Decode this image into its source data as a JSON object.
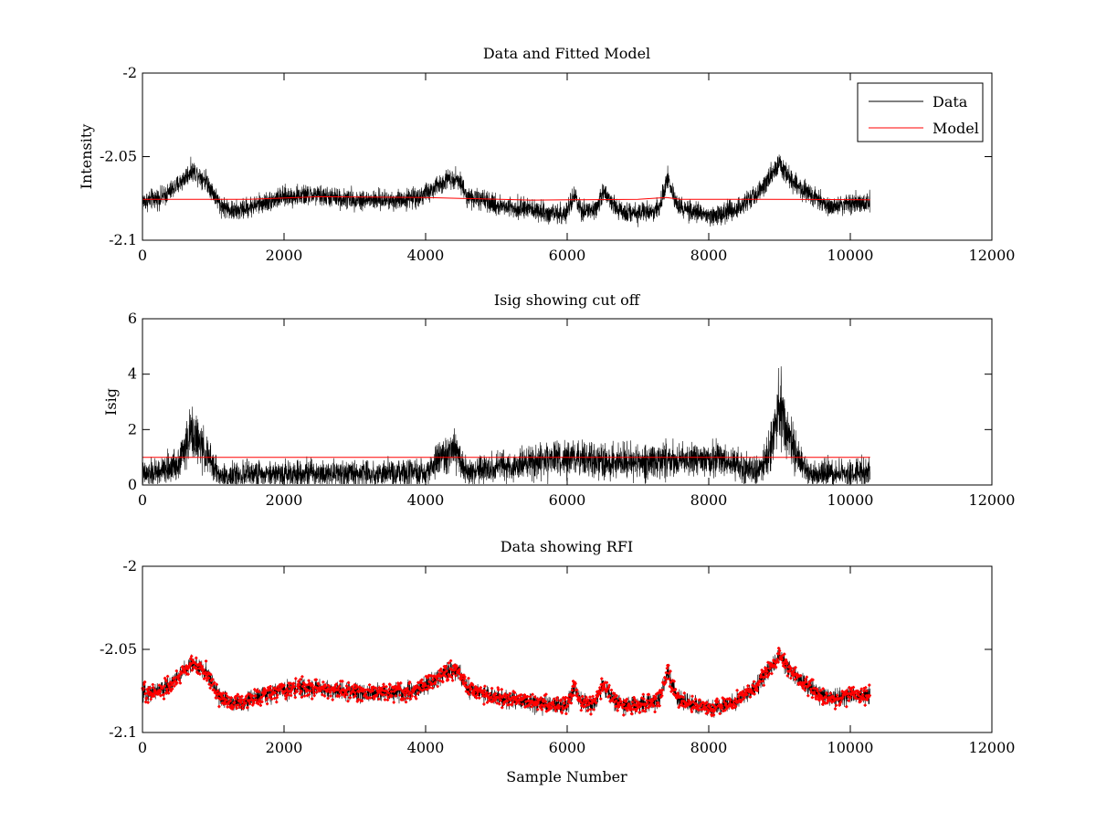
{
  "figure": {
    "background": "#ffffff",
    "axis_color": "#000000"
  },
  "chart_data": [
    {
      "type": "line",
      "title": "Data and Fitted Model",
      "xlabel": "",
      "ylabel": "Intensity",
      "xlim": [
        0,
        12000
      ],
      "ylim": [
        -2.1,
        -2.0
      ],
      "xticks": [
        "0",
        "2000",
        "4000",
        "6000",
        "8000",
        "10000",
        "12000"
      ],
      "yticks": [
        "-2",
        "-2.05",
        "-2.1"
      ],
      "grid": false,
      "legend": {
        "placement": "top-right",
        "entries": [
          "Data",
          "Model"
        ]
      },
      "x_range": [
        0,
        10280
      ],
      "series": [
        {
          "name": "Data",
          "color": "#000000",
          "style": "noisy-line",
          "x": [
            0,
            300,
            500,
            700,
            900,
            1100,
            1300,
            1600,
            2000,
            2400,
            2800,
            3200,
            3600,
            3900,
            4100,
            4300,
            4450,
            4600,
            5000,
            5400,
            5800,
            6000,
            6100,
            6200,
            6400,
            6500,
            6700,
            7000,
            7300,
            7420,
            7550,
            7800,
            8100,
            8400,
            8700,
            8900,
            9000,
            9100,
            9300,
            9500,
            9700,
            10000,
            10280
          ],
          "values": [
            -2.077,
            -2.074,
            -2.067,
            -2.058,
            -2.064,
            -2.079,
            -2.083,
            -2.079,
            -2.074,
            -2.073,
            -2.075,
            -2.076,
            -2.076,
            -2.074,
            -2.07,
            -2.063,
            -2.063,
            -2.074,
            -2.079,
            -2.081,
            -2.084,
            -2.084,
            -2.073,
            -2.083,
            -2.082,
            -2.071,
            -2.082,
            -2.084,
            -2.081,
            -2.063,
            -2.079,
            -2.084,
            -2.085,
            -2.081,
            -2.071,
            -2.06,
            -2.054,
            -2.06,
            -2.069,
            -2.075,
            -2.08,
            -2.078,
            -2.077
          ],
          "noise_amplitude": 0.009
        },
        {
          "name": "Model",
          "color": "#ff0000",
          "style": "line",
          "x": [
            0,
            1500,
            2500,
            4000,
            5500,
            7000,
            7400,
            7600,
            8800,
            10280
          ],
          "values": [
            -2.0755,
            -2.0755,
            -2.074,
            -2.0745,
            -2.076,
            -2.0755,
            -2.0745,
            -2.0755,
            -2.0755,
            -2.0758
          ]
        }
      ]
    },
    {
      "type": "line",
      "title": "Isig showing cut off",
      "xlabel": "",
      "ylabel": "Isig",
      "xlim": [
        0,
        12000
      ],
      "ylim": [
        0,
        6
      ],
      "xticks": [
        "0",
        "2000",
        "4000",
        "6000",
        "8000",
        "10000",
        "12000"
      ],
      "yticks": [
        "6",
        "4",
        "2",
        "0"
      ],
      "grid": false,
      "x_range": [
        0,
        10280
      ],
      "series": [
        {
          "color": "#000000",
          "style": "noisy-line",
          "x": [
            0,
            300,
            500,
            700,
            900,
            1100,
            1600,
            2400,
            3200,
            4000,
            4200,
            4400,
            4600,
            5000,
            5500,
            6000,
            6400,
            6800,
            7200,
            7450,
            7700,
            8100,
            8400,
            8700,
            8850,
            9000,
            9150,
            9400,
            9800,
            10280
          ],
          "values": [
            0.35,
            0.5,
            0.8,
            1.9,
            1.1,
            0.3,
            0.4,
            0.45,
            0.4,
            0.4,
            1.0,
            1.2,
            0.45,
            0.6,
            0.8,
            0.95,
            0.85,
            0.8,
            0.9,
            0.9,
            0.9,
            0.95,
            0.75,
            0.45,
            1.2,
            2.9,
            1.6,
            0.4,
            0.4,
            0.5
          ],
          "noise_amplitude": 0.9
        },
        {
          "color": "#ff0000",
          "style": "line",
          "label": "cut off",
          "x": [
            0,
            10280
          ],
          "values": [
            1,
            1
          ]
        }
      ]
    },
    {
      "type": "scatter",
      "title": "Data showing RFI",
      "xlabel": "Sample Number",
      "ylabel": "",
      "xlim": [
        0,
        12000
      ],
      "ylim": [
        -2.1,
        -2.0
      ],
      "xticks": [
        "0",
        "2000",
        "4000",
        "6000",
        "8000",
        "10000",
        "12000"
      ],
      "yticks": [
        "-2",
        "-2.05",
        "-2.1"
      ],
      "grid": false,
      "x_range": [
        0,
        10280
      ],
      "series": [
        {
          "color": "#000000",
          "style": "noisy-line",
          "x": [
            0,
            300,
            500,
            700,
            900,
            1100,
            1300,
            1600,
            2000,
            2400,
            2800,
            3200,
            3600,
            3900,
            4100,
            4300,
            4450,
            4600,
            5000,
            5400,
            5800,
            6000,
            6100,
            6200,
            6400,
            6500,
            6700,
            7000,
            7300,
            7420,
            7550,
            7800,
            8100,
            8400,
            8700,
            8900,
            9000,
            9100,
            9300,
            9500,
            9700,
            10000,
            10280
          ],
          "values": [
            -2.077,
            -2.074,
            -2.067,
            -2.058,
            -2.064,
            -2.079,
            -2.083,
            -2.079,
            -2.074,
            -2.073,
            -2.075,
            -2.076,
            -2.076,
            -2.074,
            -2.07,
            -2.063,
            -2.063,
            -2.074,
            -2.079,
            -2.081,
            -2.084,
            -2.084,
            -2.073,
            -2.083,
            -2.082,
            -2.071,
            -2.082,
            -2.084,
            -2.081,
            -2.063,
            -2.079,
            -2.084,
            -2.085,
            -2.081,
            -2.071,
            -2.06,
            -2.054,
            -2.06,
            -2.069,
            -2.075,
            -2.08,
            -2.078,
            -2.077
          ],
          "noise_amplitude": 0.008
        },
        {
          "color": "#ff0000",
          "style": "markers",
          "marker": "dot",
          "x": [
            0,
            300,
            500,
            700,
            900,
            1100,
            1300,
            1600,
            2000,
            2400,
            2800,
            3200,
            3600,
            3900,
            4100,
            4300,
            4450,
            4600,
            5000,
            5400,
            5800,
            6000,
            6100,
            6200,
            6400,
            6500,
            6700,
            7000,
            7300,
            7420,
            7550,
            7800,
            8100,
            8400,
            8700,
            8900,
            9000,
            9100,
            9300,
            9500,
            9700,
            10000,
            10280
          ],
          "values": [
            -2.077,
            -2.074,
            -2.067,
            -2.058,
            -2.064,
            -2.079,
            -2.083,
            -2.079,
            -2.074,
            -2.073,
            -2.075,
            -2.076,
            -2.076,
            -2.074,
            -2.07,
            -2.063,
            -2.063,
            -2.074,
            -2.079,
            -2.081,
            -2.084,
            -2.084,
            -2.073,
            -2.083,
            -2.082,
            -2.071,
            -2.082,
            -2.084,
            -2.081,
            -2.063,
            -2.079,
            -2.084,
            -2.085,
            -2.081,
            -2.071,
            -2.06,
            -2.054,
            -2.06,
            -2.069,
            -2.075,
            -2.08,
            -2.078,
            -2.077
          ],
          "noise_amplitude": 0.008
        }
      ]
    }
  ]
}
